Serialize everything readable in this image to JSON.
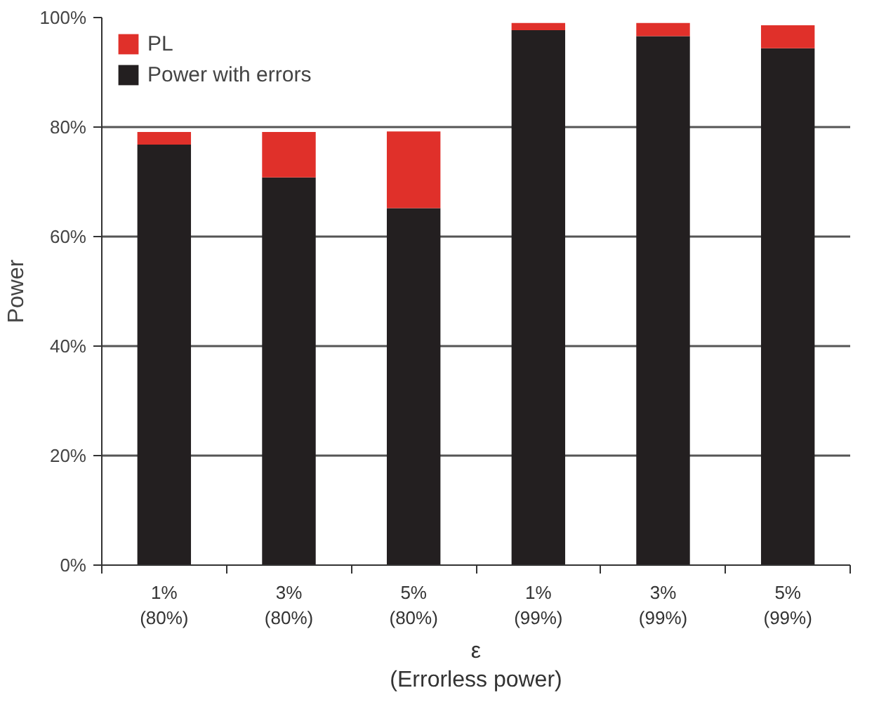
{
  "chart_data": {
    "type": "bar",
    "stacked": true,
    "xlabel": "ε\n(Errorless power)",
    "ylabel": "Power",
    "categories": [
      "1%\n(80%)",
      "3%\n(80%)",
      "5%\n(80%)",
      "1%\n(99%)",
      "3%\n(99%)",
      "5%\n(99%)"
    ],
    "series": [
      {
        "name": "Power with errors",
        "color": "#231f20",
        "values": [
          76.8,
          70.8,
          65.2,
          97.7,
          96.6,
          94.4
        ]
      },
      {
        "name": "PL",
        "color": "#e0302a",
        "values": [
          2.3,
          8.3,
          14.0,
          1.3,
          2.4,
          4.2
        ]
      }
    ],
    "ylim": [
      0,
      100
    ],
    "yticks": [
      {
        "value": 0,
        "label": "0%"
      },
      {
        "value": 20,
        "label": "20%"
      },
      {
        "value": 40,
        "label": "40%"
      },
      {
        "value": 60,
        "label": "60%"
      },
      {
        "value": 80,
        "label": "80%"
      },
      {
        "value": 100,
        "label": "100%"
      }
    ],
    "grid": "y",
    "legend": "top left"
  }
}
